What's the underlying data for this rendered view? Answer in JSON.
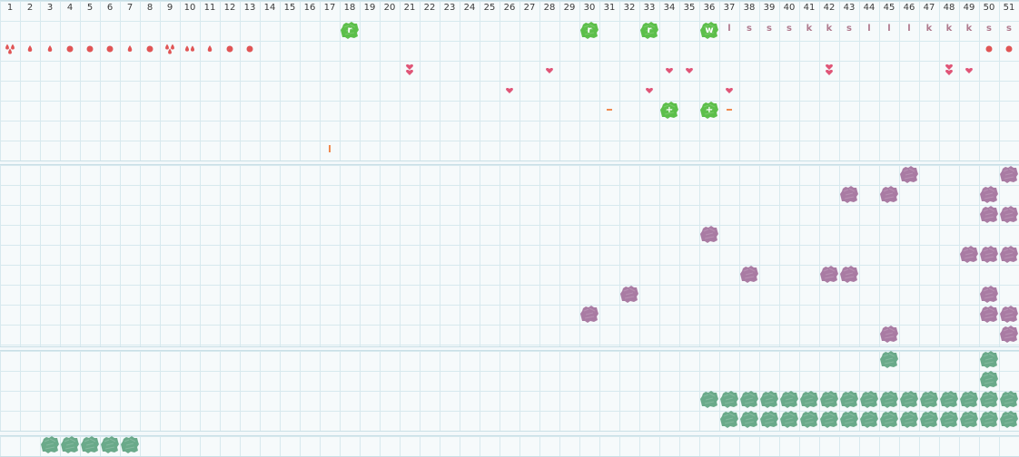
{
  "columns": [
    "1",
    "2",
    "3",
    "4",
    "5",
    "6",
    "7",
    "8",
    "9",
    "10",
    "11",
    "12",
    "13",
    "14",
    "15",
    "16",
    "17",
    "18",
    "19",
    "20",
    "21",
    "22",
    "23",
    "24",
    "25",
    "26",
    "27",
    "28",
    "29",
    "30",
    "31",
    "32",
    "33",
    "34",
    "35",
    "36",
    "37",
    "38",
    "39",
    "40",
    "41",
    "42",
    "43",
    "44",
    "45",
    "46",
    "47",
    "48",
    "49",
    "50",
    "51"
  ],
  "colors": {
    "green_tile": "#5cbf4a",
    "purple_tile": "#a97ba3",
    "teal_tile": "#6aaa8a",
    "red_mark": "#e05555",
    "pink_heart": "#e05577",
    "orange_dash": "#f08a50",
    "letter": "#b07a8e"
  },
  "row_letters": [
    {
      "col": 37,
      "text": "l"
    },
    {
      "col": 38,
      "text": "s"
    },
    {
      "col": 39,
      "text": "s"
    },
    {
      "col": 40,
      "text": "s"
    },
    {
      "col": 41,
      "text": "k"
    },
    {
      "col": 42,
      "text": "k"
    },
    {
      "col": 43,
      "text": "s"
    },
    {
      "col": 44,
      "text": "l"
    },
    {
      "col": 45,
      "text": "l"
    },
    {
      "col": 46,
      "text": "l"
    },
    {
      "col": 47,
      "text": "k"
    },
    {
      "col": 48,
      "text": "k"
    },
    {
      "col": 49,
      "text": "k"
    },
    {
      "col": 50,
      "text": "s"
    },
    {
      "col": 51,
      "text": "s"
    }
  ],
  "green_tiles": [
    {
      "col": 18,
      "row": 0,
      "symbol": "r"
    },
    {
      "col": 30,
      "row": 0,
      "symbol": "r"
    },
    {
      "col": 33,
      "row": 0,
      "symbol": "r"
    },
    {
      "col": 36,
      "row": 0,
      "symbol": "w"
    },
    {
      "col": 34,
      "row": 4,
      "symbol": "+"
    },
    {
      "col": 36,
      "row": 4,
      "symbol": "+"
    }
  ],
  "red_marks": [
    {
      "col": 1,
      "icon": "double-drop-icon"
    },
    {
      "col": 2,
      "icon": "drop-icon"
    },
    {
      "col": 3,
      "icon": "drop-icon"
    },
    {
      "col": 4,
      "icon": "dot-icon"
    },
    {
      "col": 5,
      "icon": "dot-icon"
    },
    {
      "col": 6,
      "icon": "dot-icon"
    },
    {
      "col": 7,
      "icon": "drop-icon"
    },
    {
      "col": 8,
      "icon": "dot-icon"
    },
    {
      "col": 9,
      "icon": "double-drop-icon"
    },
    {
      "col": 10,
      "icon": "pair-drop-icon"
    },
    {
      "col": 11,
      "icon": "drop-icon"
    },
    {
      "col": 12,
      "icon": "dot-icon"
    },
    {
      "col": 13,
      "icon": "dot-icon"
    },
    {
      "col": 50,
      "icon": "dot-icon"
    },
    {
      "col": 51,
      "icon": "dot-icon"
    }
  ],
  "hearts": [
    {
      "col": 21,
      "row": 2,
      "double": true
    },
    {
      "col": 26,
      "row": 3,
      "double": false
    },
    {
      "col": 28,
      "row": 2,
      "double": false
    },
    {
      "col": 33,
      "row": 3,
      "double": false
    },
    {
      "col": 34,
      "row": 2,
      "double": false
    },
    {
      "col": 35,
      "row": 2,
      "double": false
    },
    {
      "col": 37,
      "row": 3,
      "double": false
    },
    {
      "col": 42,
      "row": 2,
      "double": true
    },
    {
      "col": 48,
      "row": 2,
      "double": true
    },
    {
      "col": 49,
      "row": 2,
      "double": false
    }
  ],
  "dashes": [
    {
      "col": 31,
      "row": 4
    },
    {
      "col": 37,
      "row": 4
    }
  ],
  "ticks": [
    {
      "col": 17,
      "row": 6
    }
  ],
  "purple_tiles": [
    [
      46,
      0
    ],
    [
      51,
      0
    ],
    [
      43,
      1
    ],
    [
      45,
      1
    ],
    [
      50,
      1
    ],
    [
      50,
      2
    ],
    [
      51,
      2
    ],
    [
      36,
      3
    ],
    [
      49,
      4
    ],
    [
      50,
      4
    ],
    [
      51,
      4
    ],
    [
      38,
      5
    ],
    [
      42,
      5
    ],
    [
      43,
      5
    ],
    [
      32,
      6
    ],
    [
      50,
      6
    ],
    [
      30,
      7
    ],
    [
      50,
      7
    ],
    [
      51,
      7
    ],
    [
      45,
      8
    ],
    [
      51,
      8
    ]
  ],
  "teal_tiles": [
    [
      45,
      0
    ],
    [
      50,
      0
    ],
    [
      50,
      1
    ],
    [
      36,
      2
    ],
    [
      37,
      2
    ],
    [
      38,
      2
    ],
    [
      39,
      2
    ],
    [
      40,
      2
    ],
    [
      41,
      2
    ],
    [
      42,
      2
    ],
    [
      43,
      2
    ],
    [
      44,
      2
    ],
    [
      45,
      2
    ],
    [
      46,
      2
    ],
    [
      47,
      2
    ],
    [
      48,
      2
    ],
    [
      49,
      2
    ],
    [
      50,
      2
    ],
    [
      51,
      2
    ],
    [
      37,
      3
    ],
    [
      38,
      3
    ],
    [
      39,
      3
    ],
    [
      40,
      3
    ],
    [
      41,
      3
    ],
    [
      42,
      3
    ],
    [
      43,
      3
    ],
    [
      44,
      3
    ],
    [
      45,
      3
    ],
    [
      46,
      3
    ],
    [
      47,
      3
    ],
    [
      48,
      3
    ],
    [
      49,
      3
    ],
    [
      50,
      3
    ],
    [
      51,
      3
    ]
  ],
  "bottom_teal_tiles": [
    3,
    4,
    5,
    6,
    7
  ]
}
